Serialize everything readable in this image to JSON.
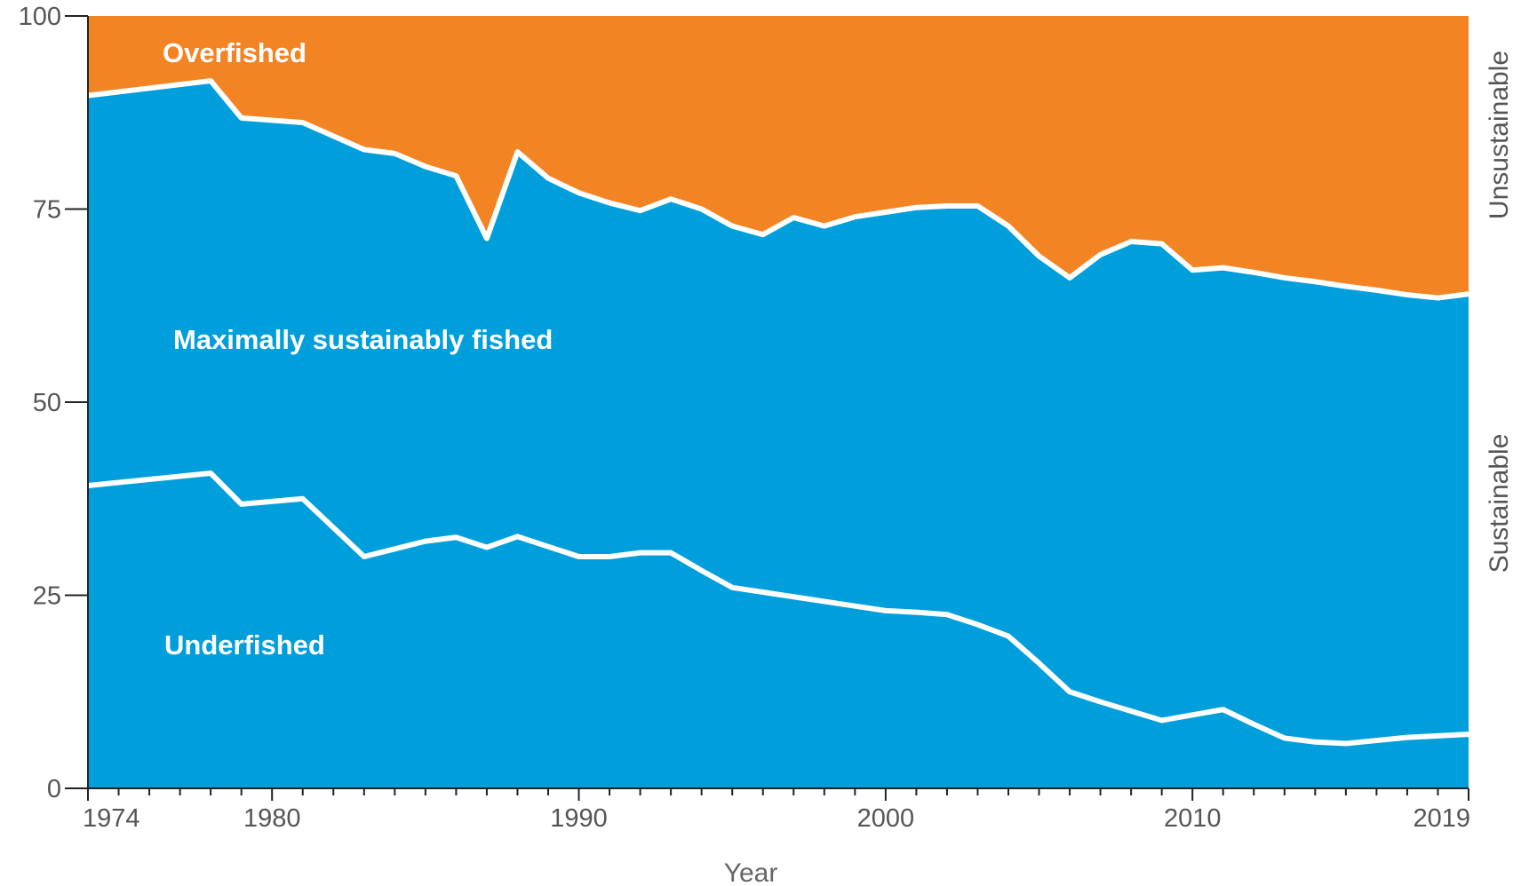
{
  "chart_data": {
    "type": "area",
    "xlabel": "Year",
    "ylabel": "",
    "xlim": [
      1974,
      2019
    ],
    "ylim": [
      0,
      100
    ],
    "x_ticks": [
      1974,
      1980,
      1990,
      2000,
      2010,
      2019
    ],
    "y_ticks": [
      0,
      25,
      50,
      75,
      100
    ],
    "x": [
      1974,
      1978,
      1979,
      1981,
      1983,
      1984,
      1985,
      1986,
      1987,
      1988,
      1989,
      1990,
      1991,
      1992,
      1993,
      1994,
      1995,
      1996,
      1997,
      1998,
      1999,
      2000,
      2001,
      2002,
      2003,
      2004,
      2005,
      2006,
      2007,
      2008,
      2009,
      2010,
      2011,
      2012,
      2013,
      2014,
      2015,
      2016,
      2017,
      2018,
      2019
    ],
    "series": [
      {
        "name": "Underfished",
        "values": [
          39.2,
          40.8,
          36.8,
          37.5,
          30.0,
          31.0,
          32.0,
          32.5,
          31.2,
          32.6,
          31.3,
          30.0,
          30.0,
          30.5,
          30.5,
          28.2,
          26.0,
          25.4,
          24.8,
          24.2,
          23.6,
          23.0,
          22.8,
          22.5,
          21.2,
          19.7,
          16.2,
          12.5,
          11.2,
          10.0,
          8.8,
          9.5,
          10.2,
          8.3,
          6.5,
          6.0,
          5.8,
          6.2,
          6.6,
          6.8,
          7.0
        ]
      },
      {
        "name": "Maximally sustainably fished",
        "values": [
          50.5,
          50.8,
          50.0,
          48.7,
          52.7,
          51.2,
          48.5,
          46.8,
          40.0,
          49.8,
          47.7,
          47.1,
          45.8,
          44.3,
          45.8,
          46.8,
          46.8,
          46.3,
          49.1,
          48.6,
          50.4,
          51.6,
          52.4,
          52.9,
          54.2,
          53.1,
          52.7,
          53.6,
          57.9,
          60.8,
          61.7,
          57.6,
          57.2,
          58.5,
          59.6,
          59.6,
          59.2,
          58.3,
          57.3,
          56.7,
          57.0
        ]
      },
      {
        "name": "Overfished",
        "values": [
          10.3,
          8.4,
          13.2,
          13.8,
          17.3,
          17.8,
          19.5,
          20.7,
          28.8,
          17.6,
          21.0,
          22.9,
          24.2,
          25.2,
          23.7,
          25.0,
          27.2,
          28.3,
          26.1,
          27.2,
          26.0,
          25.4,
          24.8,
          24.6,
          24.6,
          27.2,
          31.1,
          33.9,
          30.9,
          29.2,
          29.5,
          32.9,
          32.6,
          33.2,
          33.9,
          34.4,
          35.0,
          35.5,
          36.1,
          36.5,
          36.0
        ]
      }
    ],
    "annotations": [
      "Overfished",
      "Maximally sustainably fished",
      "Underfished"
    ],
    "right_labels": [
      "Unsustainable",
      "Sustainable"
    ],
    "grid": false,
    "colors": {
      "sustainable": "#009fdc",
      "overfished": "#f28424",
      "divider": "#ffffff",
      "axis": "#222222"
    }
  }
}
